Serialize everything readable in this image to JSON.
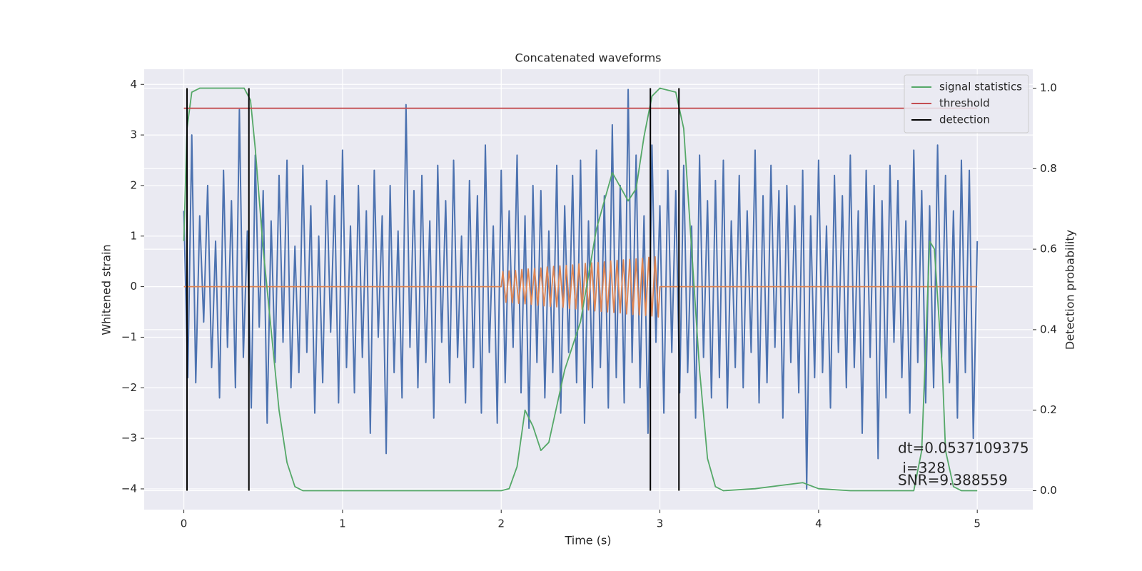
{
  "chart_data": {
    "type": "line",
    "title": "Concatenated waveforms",
    "xlabel": "Time (s)",
    "ylabel": "Whitened strain",
    "y2label": "Detection probability",
    "xlim": [
      -0.25,
      5.35
    ],
    "ylim": [
      -4.41,
      4.3
    ],
    "y2lim": [
      -0.047,
      1.047
    ],
    "xticks": [
      0,
      1,
      2,
      3,
      4,
      5
    ],
    "yticks": [
      {
        "value": -4,
        "label": "−4"
      },
      {
        "value": -3,
        "label": "−3"
      },
      {
        "value": -2,
        "label": "−2"
      },
      {
        "value": -1,
        "label": "−1"
      },
      0,
      1,
      2,
      3,
      4
    ],
    "y2ticks": [
      {
        "value": 0,
        "label": "0.0"
      },
      0.2,
      0.4,
      0.6,
      0.8,
      {
        "value": 1,
        "label": "1.0"
      }
    ],
    "grid": true,
    "legend": "upper right",
    "series": [
      {
        "color": "#4c72b0",
        "x": [
          0,
          0.025,
          0.05,
          0.075,
          0.1,
          0.125,
          0.15,
          0.175,
          0.2,
          0.225,
          0.25,
          0.275,
          0.3,
          0.325,
          0.35,
          0.375,
          0.4,
          0.425,
          0.45,
          0.475,
          0.5,
          0.525,
          0.55,
          0.575,
          0.6,
          0.625,
          0.65,
          0.675,
          0.7,
          0.725,
          0.75,
          0.775,
          0.8,
          0.825,
          0.85,
          0.875,
          0.9,
          0.925,
          0.95,
          0.975,
          1,
          1.025,
          1.05,
          1.075,
          1.1,
          1.125,
          1.15,
          1.175,
          1.2,
          1.225,
          1.25,
          1.275,
          1.3,
          1.325,
          1.35,
          1.375,
          1.4,
          1.425,
          1.45,
          1.475,
          1.5,
          1.525,
          1.55,
          1.575,
          1.6,
          1.625,
          1.65,
          1.675,
          1.7,
          1.725,
          1.75,
          1.775,
          1.8,
          1.825,
          1.85,
          1.875,
          1.9,
          1.925,
          1.95,
          1.975,
          2,
          2.025,
          2.05,
          2.075,
          2.1,
          2.125,
          2.15,
          2.175,
          2.2,
          2.225,
          2.25,
          2.275,
          2.3,
          2.325,
          2.35,
          2.375,
          2.4,
          2.425,
          2.45,
          2.475,
          2.5,
          2.525,
          2.55,
          2.575,
          2.6,
          2.625,
          2.65,
          2.675,
          2.7,
          2.725,
          2.75,
          2.775,
          2.8,
          2.825,
          2.85,
          2.875,
          2.9,
          2.925,
          2.95,
          2.975,
          3,
          3.025,
          3.05,
          3.075,
          3.1,
          3.125,
          3.15,
          3.175,
          3.2,
          3.225,
          3.25,
          3.275,
          3.3,
          3.325,
          3.35,
          3.375,
          3.4,
          3.425,
          3.45,
          3.475,
          3.5,
          3.525,
          3.55,
          3.575,
          3.6,
          3.625,
          3.65,
          3.675,
          3.7,
          3.725,
          3.75,
          3.775,
          3.8,
          3.825,
          3.85,
          3.875,
          3.9,
          3.925,
          3.95,
          3.975,
          4,
          4.025,
          4.05,
          4.075,
          4.1,
          4.125,
          4.15,
          4.175,
          4.2,
          4.225,
          4.25,
          4.275,
          4.3,
          4.325,
          4.35,
          4.375,
          4.4,
          4.425,
          4.45,
          4.475,
          4.5,
          4.525,
          4.55,
          4.575,
          4.6,
          4.625,
          4.65,
          4.675,
          4.7,
          4.725,
          4.75,
          4.775,
          4.8,
          4.825,
          4.85,
          4.875,
          4.9,
          4.925,
          4.95,
          4.975,
          5
        ],
        "values": [
          1.5,
          -1.8,
          3.0,
          -1.9,
          1.4,
          -0.7,
          2.0,
          -1.6,
          0.9,
          -2.2,
          2.3,
          -1.2,
          1.7,
          -2.0,
          3.5,
          -1.4,
          1.1,
          -2.4,
          2.6,
          -0.8,
          1.9,
          -2.7,
          1.3,
          -1.5,
          2.2,
          -1.1,
          2.5,
          -2.0,
          0.8,
          -1.7,
          2.4,
          -1.3,
          1.6,
          -2.5,
          1.0,
          -1.9,
          2.1,
          -0.9,
          1.8,
          -2.3,
          2.7,
          -1.6,
          1.2,
          -2.1,
          2.0,
          -1.4,
          1.5,
          -2.9,
          2.3,
          -1.0,
          1.4,
          -3.3,
          2.0,
          -1.7,
          1.1,
          -2.2,
          3.6,
          -1.2,
          1.9,
          -2.0,
          2.2,
          -1.5,
          1.3,
          -2.6,
          2.4,
          -1.1,
          1.7,
          -1.9,
          2.5,
          -1.4,
          1.0,
          -2.3,
          2.1,
          -1.6,
          1.8,
          -2.5,
          2.8,
          -1.3,
          1.2,
          -2.7,
          2.3,
          -1.9,
          1.5,
          -1.2,
          2.6,
          -2.1,
          1.4,
          -2.8,
          2.0,
          -1.5,
          1.9,
          -2.2,
          1.1,
          -1.7,
          2.4,
          -2.5,
          1.6,
          -1.3,
          2.2,
          -1.9,
          2.5,
          -2.7,
          1.3,
          -2.0,
          2.7,
          -1.6,
          1.8,
          -2.4,
          3.2,
          -1.8,
          2.0,
          -2.3,
          3.9,
          -1.5,
          2.6,
          -2.0,
          1.4,
          -2.9,
          2.8,
          -1.1,
          1.6,
          -2.5,
          2.3,
          -1.3,
          1.9,
          -2.1,
          2.4,
          -1.7,
          1.2,
          -2.6,
          2.6,
          -1.4,
          1.7,
          -2.2,
          2.1,
          -1.8,
          2.5,
          -2.4,
          1.3,
          -1.6,
          2.2,
          -2.0,
          1.5,
          -1.3,
          2.7,
          -2.3,
          1.8,
          -1.9,
          2.4,
          -1.2,
          1.9,
          -2.6,
          2.0,
          -1.5,
          1.6,
          -2.1,
          2.3,
          -4.0,
          1.4,
          -1.8,
          2.5,
          -1.7,
          1.2,
          -2.4,
          2.2,
          -1.3,
          1.8,
          -2.0,
          2.6,
          -1.6,
          1.5,
          -2.9,
          2.3,
          -1.4,
          2.0,
          -3.4,
          1.7,
          -2.2,
          2.4,
          -1.1,
          2.1,
          -1.8,
          1.3,
          -2.5,
          2.7,
          -1.5,
          1.9,
          -2.3,
          1.6,
          -2.0,
          2.8,
          -1.4,
          2.2,
          -1.9,
          1.5,
          -2.6,
          2.5,
          -1.7,
          2.3,
          -3.0,
          0.9
        ]
      },
      {
        "color": "#dd8452",
        "x": [
          0,
          2.0,
          2.01,
          2.03,
          2.05,
          2.07,
          2.09,
          2.11,
          2.13,
          2.15,
          2.17,
          2.19,
          2.21,
          2.23,
          2.25,
          2.27,
          2.29,
          2.31,
          2.33,
          2.35,
          2.37,
          2.39,
          2.41,
          2.43,
          2.45,
          2.47,
          2.49,
          2.51,
          2.53,
          2.55,
          2.57,
          2.59,
          2.61,
          2.63,
          2.65,
          2.67,
          2.69,
          2.71,
          2.73,
          2.75,
          2.77,
          2.79,
          2.81,
          2.83,
          2.85,
          2.87,
          2.89,
          2.91,
          2.93,
          2.95,
          2.97,
          2.99,
          3.0,
          5
        ],
        "values": [
          0,
          0,
          0.3,
          -0.31,
          0.31,
          -0.32,
          0.32,
          -0.33,
          0.34,
          -0.34,
          0.35,
          -0.35,
          0.36,
          -0.37,
          0.37,
          -0.38,
          0.39,
          -0.39,
          0.4,
          -0.4,
          0.41,
          -0.41,
          0.42,
          -0.43,
          0.43,
          -0.44,
          0.45,
          -0.45,
          0.46,
          -0.46,
          0.47,
          -0.48,
          0.48,
          -0.49,
          0.49,
          -0.5,
          0.51,
          -0.51,
          0.52,
          -0.52,
          0.53,
          -0.54,
          0.54,
          -0.55,
          0.55,
          -0.56,
          0.56,
          -0.57,
          0.58,
          -0.58,
          0.59,
          -0.6,
          0,
          0
        ]
      },
      {
        "name": "signal statistics",
        "color": "#55a868",
        "axis": "y2",
        "x": [
          0,
          0.02,
          0.05,
          0.1,
          0.38,
          0.42,
          0.45,
          0.5,
          0.55,
          0.6,
          0.65,
          0.7,
          0.75,
          2.0,
          2.05,
          2.1,
          2.15,
          2.2,
          2.25,
          2.3,
          2.4,
          2.5,
          2.6,
          2.7,
          2.8,
          2.85,
          2.9,
          2.95,
          3.0,
          3.1,
          3.15,
          3.2,
          3.25,
          3.3,
          3.35,
          3.4,
          3.6,
          3.8,
          3.9,
          4.0,
          4.2,
          4.6,
          4.65,
          4.7,
          4.73,
          4.78,
          4.8,
          4.85,
          4.9,
          5
        ],
        "values": [
          0.62,
          0.9,
          0.99,
          1.0,
          1.0,
          0.97,
          0.85,
          0.6,
          0.4,
          0.2,
          0.07,
          0.01,
          0.0,
          0.0,
          0.005,
          0.06,
          0.2,
          0.16,
          0.1,
          0.12,
          0.3,
          0.42,
          0.65,
          0.79,
          0.72,
          0.75,
          0.88,
          0.98,
          1.0,
          0.99,
          0.9,
          0.6,
          0.3,
          0.08,
          0.01,
          0.0,
          0.005,
          0.015,
          0.02,
          0.005,
          0.0,
          0.0,
          0.1,
          0.62,
          0.6,
          0.3,
          0.1,
          0.01,
          0.0,
          0.0
        ]
      },
      {
        "name": "threshold",
        "color": "#c44e52",
        "axis": "y2",
        "x": [
          0,
          5
        ],
        "values": [
          0.95,
          0.95
        ]
      },
      {
        "name": "detection",
        "color": "#000000",
        "axis": "y2",
        "vlines": [
          0.02,
          0.41,
          2.94,
          3.12
        ]
      }
    ],
    "annotation": [
      "dt=0.0537109375",
      " i=328",
      "SNR=9.388559"
    ]
  }
}
